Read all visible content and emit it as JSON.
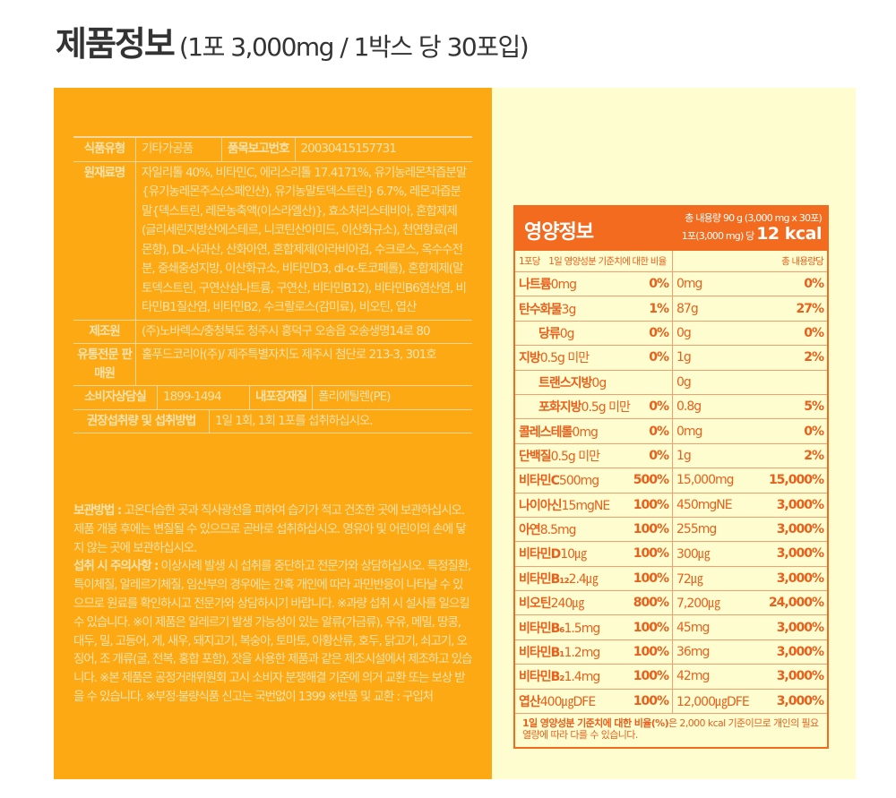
{
  "title": {
    "main": "제품정보",
    "sub": "(1포 3,000mg / 1박스 당 30포입)"
  },
  "colors": {
    "left_bg": "#fca913",
    "right_bg": "#fefdd0",
    "accent": "#f26b1f"
  },
  "info": {
    "food_type_label": "식품유형",
    "food_type": "기타가공품",
    "report_no_label": "품목보고번호",
    "report_no": "20030415157731",
    "ingredients_label": "원재료명",
    "ingredients": "자일리톨 40%, 비타민C, 에리스리톨 17.4171%, 유기농레몬착즙분말{유기농레몬주스(스페인산), 유기농말토덱스트린} 6.7%, 레몬과즙분말{덱스트린, 레몬농축액(이스라엘산)}, 효소처리스테비아, 혼합제제(글리세린지방산에스테르, 니코틴산아미드, 이산화규소), 천연향료(레몬향), DL-사과산, 산화아연, 혼합제제(아라비아검, 수크로스, 옥수수전분, 중쇄중성지방, 이산화규소, 비타민D3, dl-α-토코페롤), 혼합제제(말토덱스트린, 구연산삼나트륨, 구연산, 비타민B12), 비타민B6염산염, 비타민B1질산염, 비타민B2, 수크랄로스(감미료), 비오틴, 엽산",
    "maker_label": "제조원",
    "maker": "(주)노바렉스/충청북도 청주시 흥덕구 오송읍 오송생명14로 80",
    "seller_label": "유통전문 판매원",
    "seller": "홀푸드코리아(주)/ 제주특별자치도 제주시 첨단로 213-3, 301호",
    "cs_label": "소비자상담실",
    "cs": "1899-1494",
    "pack_label": "내포장재질",
    "pack": "폴리에틸렌(PE)",
    "dose_label": "권장섭취량 및 섭취방법",
    "dose": "1일 1회, 1회 1포를 섭취하십시오.",
    "storage_label": "보관방법 :",
    "storage": "고온다습한 곳과 직사광선을 피하여 습기가 적고 건조한 곳에 보관하십시오. 제품 개봉 후에는 변질될 수 있으므로 곧바로 섭취하십시오. 영유아 및 어린이의 손에 닿지 않는 곳에 보관하십시오.",
    "caution_label": "섭취 시 주의사항 :",
    "caution": "이상사례 발생 시 섭취를 중단하고 전문가와 상담하십시오. 특정질환, 특이체질, 알레르기체질, 임산부의 경우에는 간혹 개인에 따라 과민반응이 나타날 수 있으므로 원료를 확인하시고 전문가와 상담하시기 바랍니다. ※과량 섭취 시 설사를 일으킬 수 있습니다. ※이 제품은 알레르기 발생 가능성이 있는 알류(가금류), 우유, 메밀, 땅콩, 대두, 밀, 고등어, 게, 새우, 돼지고기, 복숭아, 토마토, 아황산류, 호두, 닭고기, 쇠고기, 오징어, 조 개류(굴, 전복, 홍합 포함), 잣을 사용한 제품과 같은 제조시설에서 제조하고 있습니다. ※본 제품은 공정거래위원회 고시 소비자 분쟁해결 기준에 의거 교환 또는 보상 받을 수 있습니다. ※부정·불량식품 신고는 국번없이 1399 ※반품 및 교환 : 구입처"
  },
  "nutrition": {
    "title": "영양정보",
    "total": "총 내용량 90 g (3,000 mg x 30포)",
    "per_pack": "1포(3,000 mg) 당",
    "kcal": "12 kcal",
    "sub_left": "1포당　1일 영양성분 기준치에 대한 비율",
    "sub_right": "총 내용량당",
    "rows": [
      {
        "name": "나트륨",
        "amt": "0mg",
        "pct": "0%",
        "tamt": "0mg",
        "tpct": "0%"
      },
      {
        "name": "탄수화물",
        "amt": "3g",
        "pct": "1%",
        "tamt": "87g",
        "tpct": "27%"
      },
      {
        "name": "당류",
        "amt": "0g",
        "pct": "0%",
        "tamt": "0g",
        "tpct": "0%",
        "indent": true
      },
      {
        "name": "지방",
        "amt": "0.5g 미만",
        "pct": "0%",
        "tamt": "1g",
        "tpct": "2%"
      },
      {
        "name": "트랜스지방",
        "amt": "0g",
        "pct": "",
        "tamt": "0g",
        "tpct": "",
        "indent": true
      },
      {
        "name": "포화지방",
        "amt": "0.5g 미만",
        "pct": "0%",
        "tamt": "0.8g",
        "tpct": "5%",
        "indent": true
      },
      {
        "name": "콜레스테롤",
        "amt": "0mg",
        "pct": "0%",
        "tamt": "0mg",
        "tpct": "0%"
      },
      {
        "name": "단백질",
        "amt": "0.5g 미만",
        "pct": "0%",
        "tamt": "1g",
        "tpct": "2%"
      },
      {
        "name": "비타민C",
        "amt": "500mg",
        "pct": "500%",
        "tamt": "15,000mg",
        "tpct": "15,000%"
      },
      {
        "name": "나이아신",
        "amt": "15mgNE",
        "pct": "100%",
        "tamt": "450mgNE",
        "tpct": "3,000%"
      },
      {
        "name": "아연",
        "amt": "8.5mg",
        "pct": "100%",
        "tamt": "255mg",
        "tpct": "3,000%"
      },
      {
        "name": "비타민D",
        "amt": "10㎍",
        "pct": "100%",
        "tamt": "300㎍",
        "tpct": "3,000%"
      },
      {
        "name": "비타민B₁₂",
        "amt": "2.4㎍",
        "pct": "100%",
        "tamt": "72㎍",
        "tpct": "3,000%"
      },
      {
        "name": "비오틴",
        "amt": "240㎍",
        "pct": "800%",
        "tamt": "7,200㎍",
        "tpct": "24,000%"
      },
      {
        "name": "비타민B₆",
        "amt": "1.5mg",
        "pct": "100%",
        "tamt": "45mg",
        "tpct": "3,000%"
      },
      {
        "name": "비타민B₁",
        "amt": "1.2mg",
        "pct": "100%",
        "tamt": "36mg",
        "tpct": "3,000%"
      },
      {
        "name": "비타민B₂",
        "amt": "1.4mg",
        "pct": "100%",
        "tamt": "42mg",
        "tpct": "3,000%"
      },
      {
        "name": "엽산",
        "amt": "400㎍DFE",
        "pct": "100%",
        "tamt": "12,000㎍DFE",
        "tpct": "3,000%"
      }
    ],
    "footnote_bold": "1일 영양성분 기준치에 대한 비율(%)",
    "footnote": "은 2,000 kcal 기준이므로 개인의 필요 열량에 따라 다를 수 있습니다."
  }
}
